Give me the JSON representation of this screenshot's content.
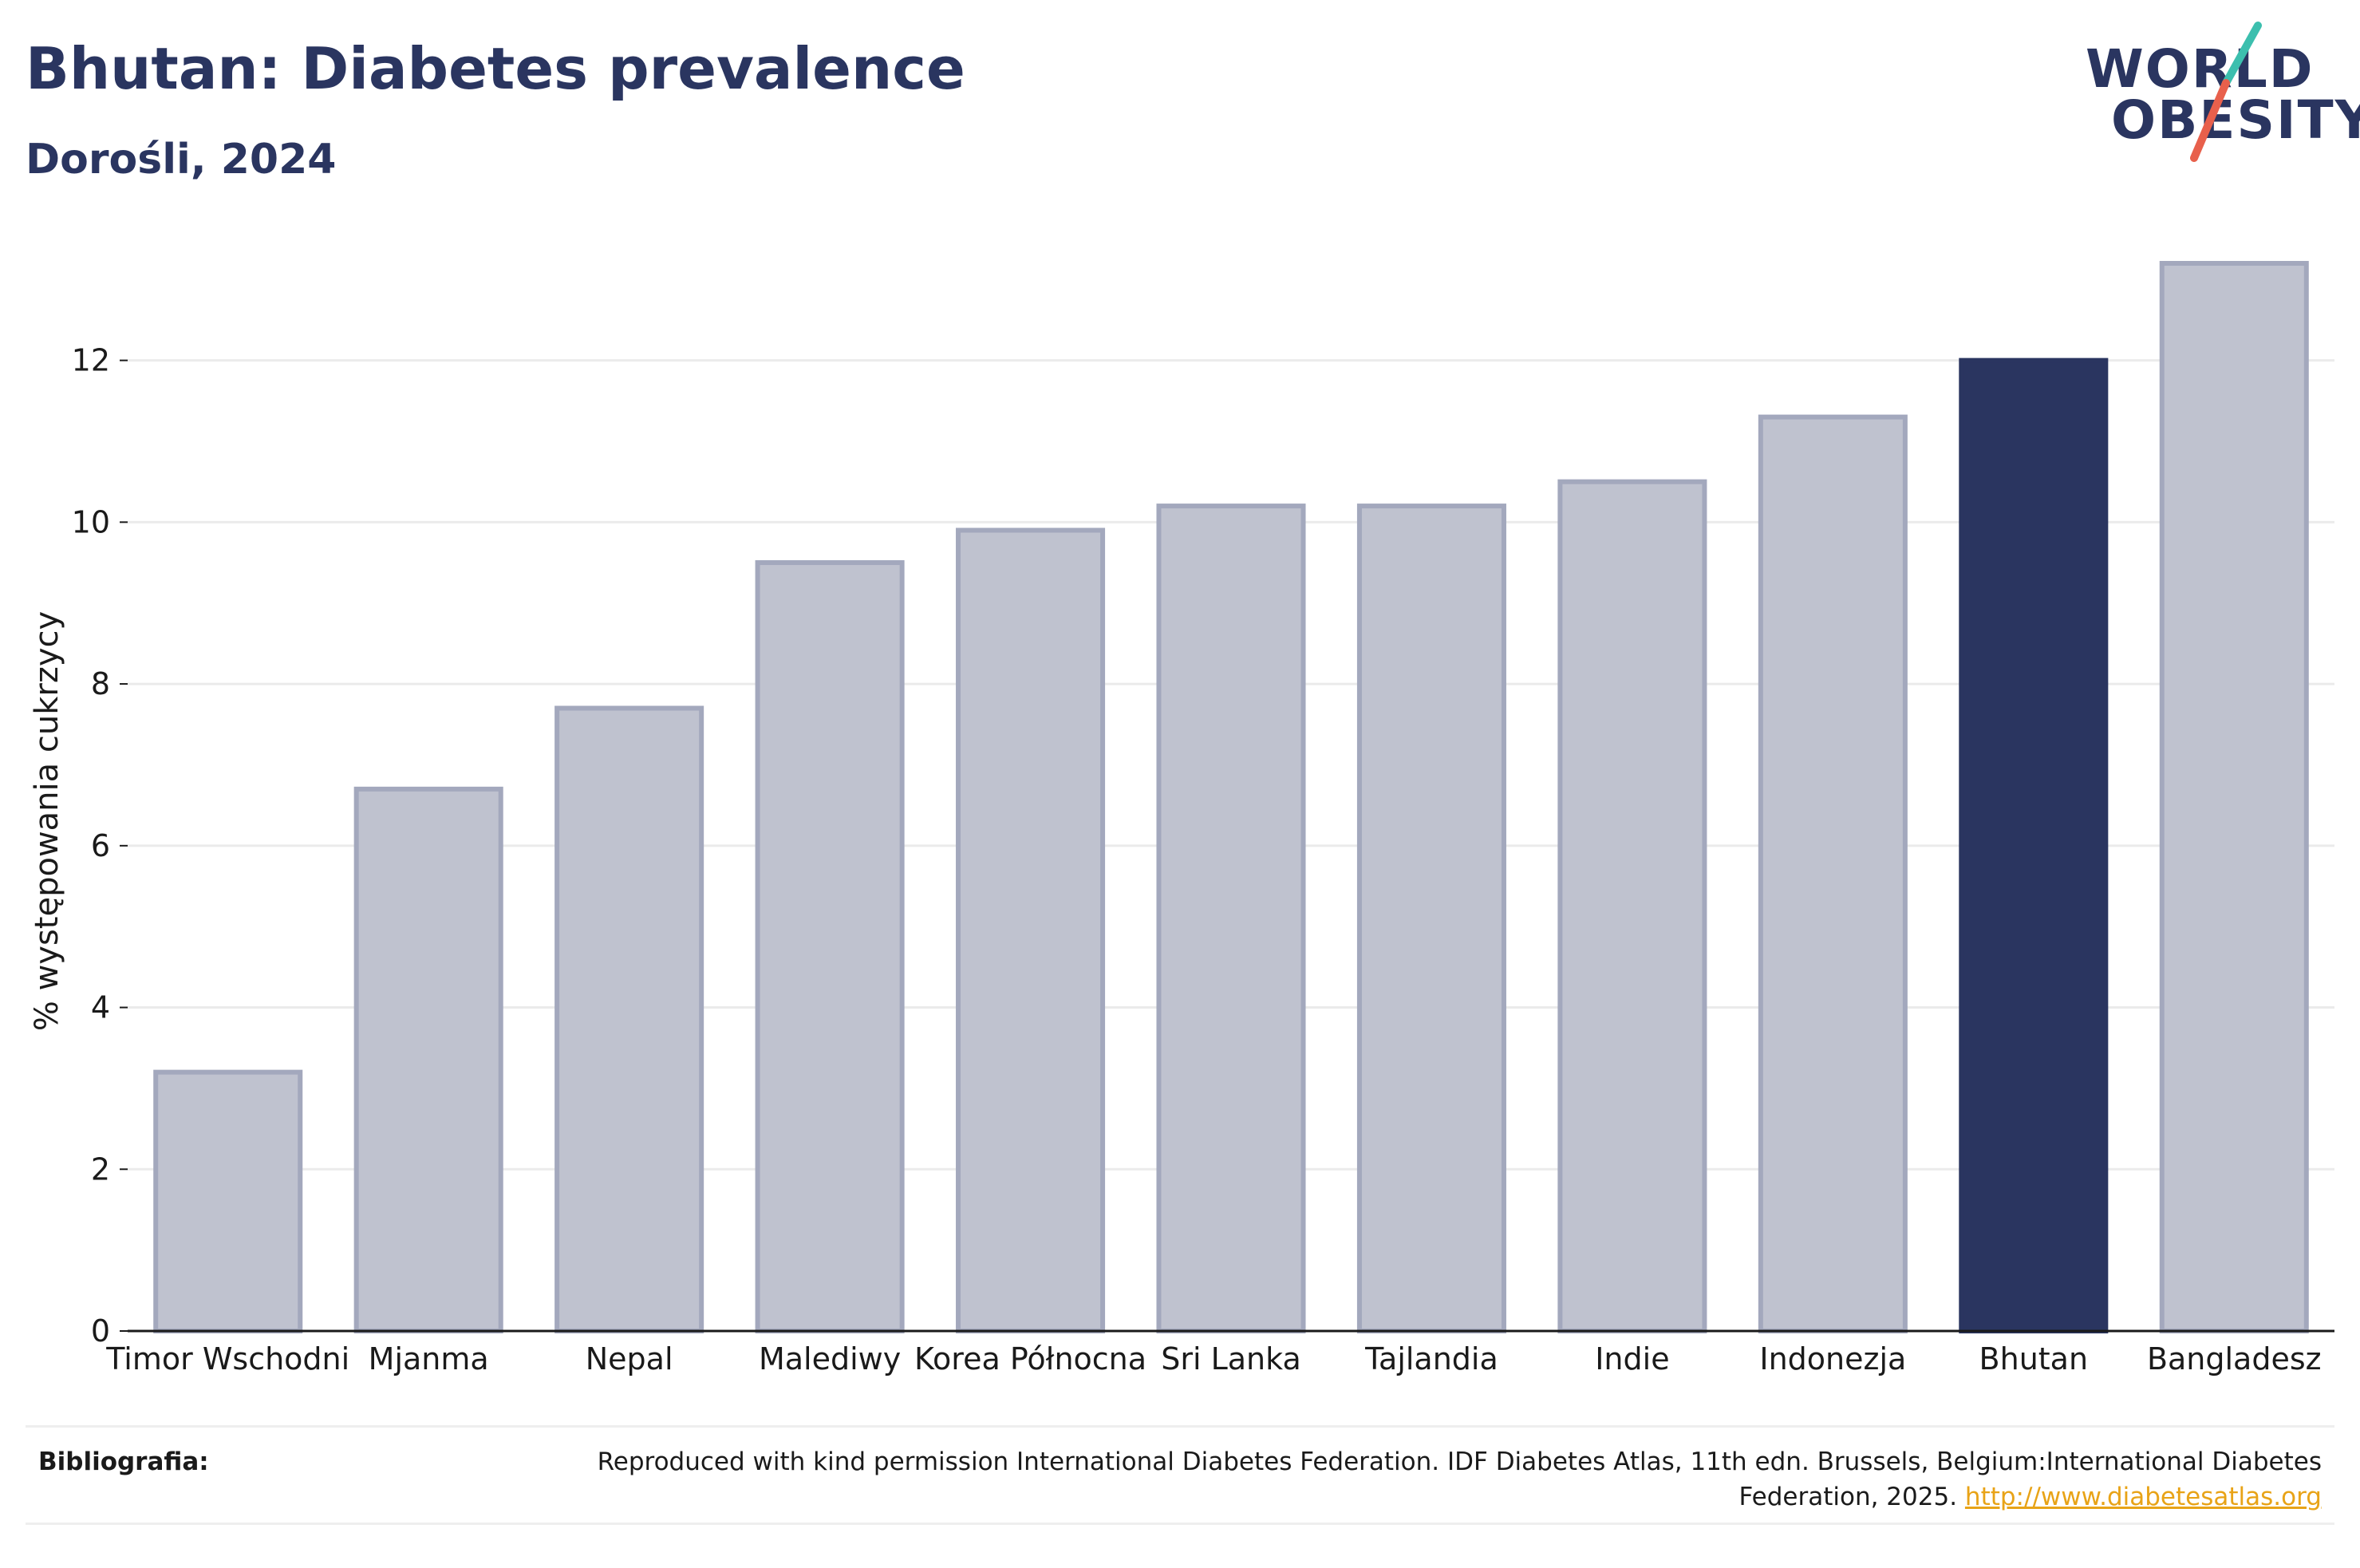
{
  "header": {
    "title": "Bhutan: Diabetes prevalence",
    "subtitle": "Dorośli, 2024"
  },
  "logo": {
    "line1": "WORLD",
    "line2": "OBESITY",
    "icon": "world-obesity-logo"
  },
  "chart_data": {
    "type": "bar",
    "title": "Bhutan: Diabetes prevalence",
    "subtitle": "Dorośli, 2024",
    "xlabel": "",
    "ylabel": "% występowania cukrzycy",
    "categories": [
      "Timor Wschodni",
      "Mjanma",
      "Nepal",
      "Malediwy",
      "Korea Północna",
      "Sri Lanka",
      "Tajlandia",
      "Indie",
      "Indonezja",
      "Bhutan",
      "Bangladesz"
    ],
    "values": [
      3.2,
      6.7,
      7.7,
      9.5,
      9.9,
      10.2,
      10.2,
      10.5,
      11.3,
      12.0,
      13.2
    ],
    "highlight": "Bhutan",
    "ylim": [
      0,
      13.2
    ],
    "yticks": [
      0,
      2,
      4,
      6,
      8,
      10,
      12
    ],
    "grid": true,
    "colors": {
      "bar": "#bfc2cf",
      "bar_border": "#a3a8bd",
      "highlight": "#2a3560",
      "grid": "#ebebeb",
      "axis": "#1a1a1a"
    }
  },
  "footer": {
    "label": "Bibliografia:",
    "text": "Reproduced with kind permission International Diabetes Federation. IDF Diabetes Atlas, 11th edn. Brussels, Belgium:International Diabetes Federation, 2025.",
    "link_text": "http://www.diabetesatlas.org"
  }
}
